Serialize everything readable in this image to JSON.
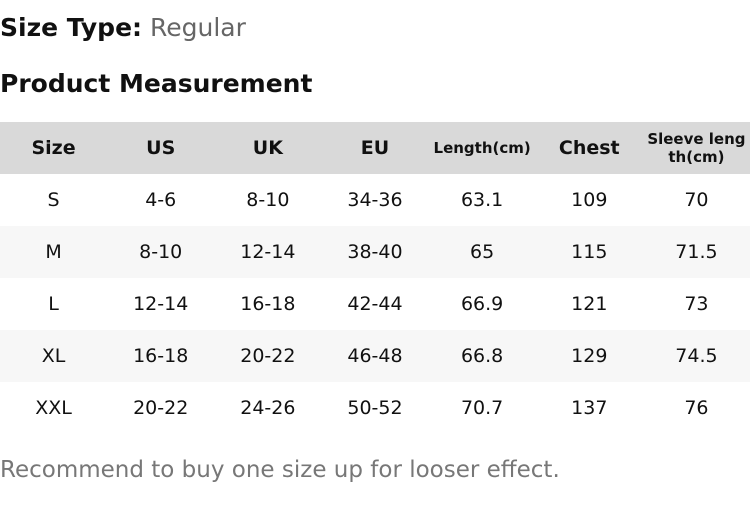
{
  "size_type": {
    "label": "Size Type:",
    "value": "Regular"
  },
  "heading": "Product Measurement",
  "table": {
    "headers": [
      "Size",
      "US",
      "UK",
      "EU",
      "Length(cm)",
      "Chest",
      "Sleeve length(cm)"
    ],
    "rows": [
      [
        "S",
        "4-6",
        "8-10",
        "34-36",
        "63.1",
        "109",
        "70"
      ],
      [
        "M",
        "8-10",
        "12-14",
        "38-40",
        "65",
        "115",
        "71.5"
      ],
      [
        "L",
        "12-14",
        "16-18",
        "42-44",
        "66.9",
        "121",
        "73"
      ],
      [
        "XL",
        "16-18",
        "20-22",
        "46-48",
        "66.8",
        "129",
        "74.5"
      ],
      [
        "XXL",
        "20-22",
        "24-26",
        "50-52",
        "70.7",
        "137",
        "76"
      ]
    ]
  },
  "note": "Recommend to buy one size up for looser effect."
}
